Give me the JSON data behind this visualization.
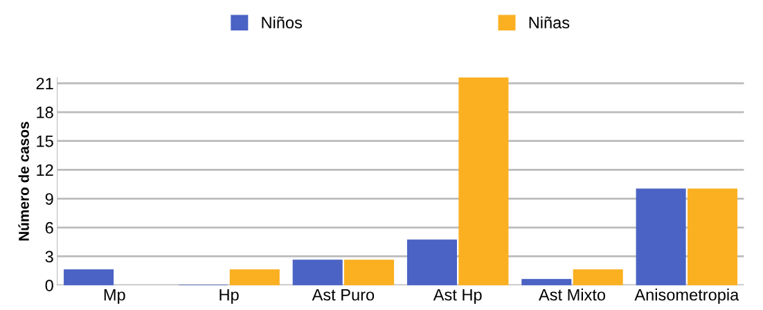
{
  "chart_data": {
    "type": "bar",
    "ylabel": "Número de casos",
    "categories": [
      "Mp",
      "Hp",
      "Ast Puro",
      "Ast Hp",
      "Ast Mixto",
      "Anisometropia"
    ],
    "series": [
      {
        "name": "Niños",
        "color": "#4a63c4",
        "values": [
          1.6,
          0,
          2.6,
          4.7,
          0.6,
          10
        ]
      },
      {
        "name": "Niñas",
        "color": "#fbb021",
        "values": [
          null,
          1.6,
          2.6,
          21.6,
          1.6,
          10
        ]
      }
    ],
    "ylim": [
      0,
      21.6
    ],
    "yticks": [
      0,
      3,
      6,
      9,
      12,
      15,
      18,
      21
    ],
    "grid": "y",
    "legend": "top"
  }
}
